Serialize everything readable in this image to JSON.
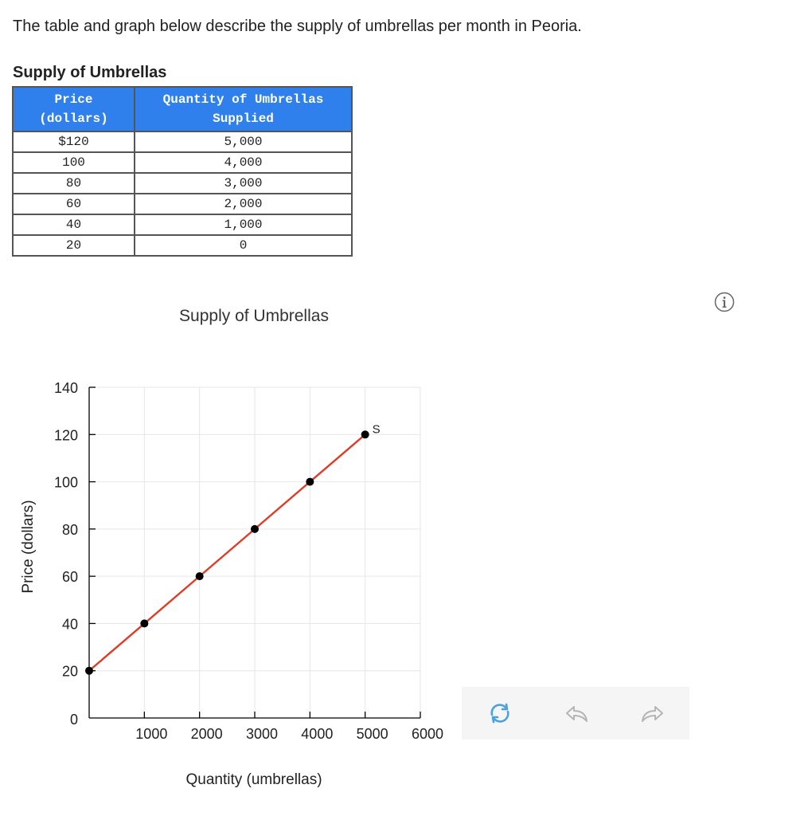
{
  "intro_text": "The table and graph below describe the supply of umbrellas per month in Peoria.",
  "table": {
    "title": "Supply of Umbrellas",
    "headers": [
      "Price\n(dollars)",
      "Quantity of Umbrellas\nSupplied"
    ],
    "header_lines": [
      [
        "Price",
        "(dollars)"
      ],
      [
        "Quantity of Umbrellas",
        "Supplied"
      ]
    ],
    "rows": [
      [
        "$120",
        "5,000"
      ],
      [
        "100",
        "4,000"
      ],
      [
        "80",
        "3,000"
      ],
      [
        "60",
        "2,000"
      ],
      [
        "40",
        "1,000"
      ],
      [
        "20",
        "0"
      ]
    ]
  },
  "icons": {
    "info": "info-icon",
    "refresh": "refresh-icon",
    "undo": "undo-icon",
    "redo": "redo-icon"
  },
  "colors": {
    "header_bg": "#2f80ed",
    "supply_line": "#e03c28",
    "point": "#000000",
    "grid": "#e6e6e6",
    "toolbar_bg": "#f5f5f5",
    "refresh_icon": "#4aa3df",
    "arrow_icon": "#b5b5b5"
  },
  "chart_data": {
    "type": "line",
    "title": "Supply of Umbrellas",
    "xlabel": "Quantity (umbrellas)",
    "ylabel": "Price (dollars)",
    "xlim": [
      0,
      6000
    ],
    "ylim": [
      0,
      140
    ],
    "xticks": [
      1000,
      2000,
      3000,
      4000,
      5000,
      6000
    ],
    "yticks": [
      0,
      20,
      40,
      60,
      80,
      100,
      120,
      140
    ],
    "grid": true,
    "series": [
      {
        "name": "S",
        "x": [
          0,
          1000,
          2000,
          3000,
          4000,
          5000
        ],
        "y": [
          20,
          40,
          60,
          80,
          100,
          120
        ]
      }
    ]
  }
}
